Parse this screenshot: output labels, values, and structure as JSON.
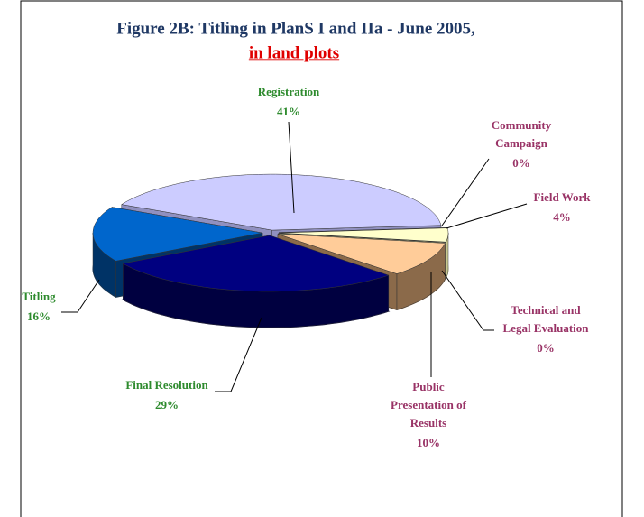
{
  "chart_data": {
    "type": "pie",
    "title": "Figure 2B: Titling in PlanS I and IIa - June 2005,",
    "subtitle": "in land plots",
    "categories": [
      "Registration",
      "Community Campaign",
      "Field Work",
      "Technical and Legal Evaluation",
      "Public Presentation of Results",
      "Final Resolution",
      "Titling"
    ],
    "values": [
      41,
      0,
      4,
      0,
      10,
      29,
      16
    ],
    "value_labels": [
      "41%",
      "0%",
      "4%",
      "0%",
      "10%",
      "29%",
      "16%"
    ],
    "colors": [
      "#ccccff",
      "#993366",
      "#ffffcc",
      "#ffffff",
      "#ffcc99",
      "#000080",
      "#0066cc"
    ],
    "label_colors": [
      "#2e8b2e",
      "#993366",
      "#993366",
      "#993366",
      "#993366",
      "#2e8b2e",
      "#2e8b2e"
    ]
  }
}
